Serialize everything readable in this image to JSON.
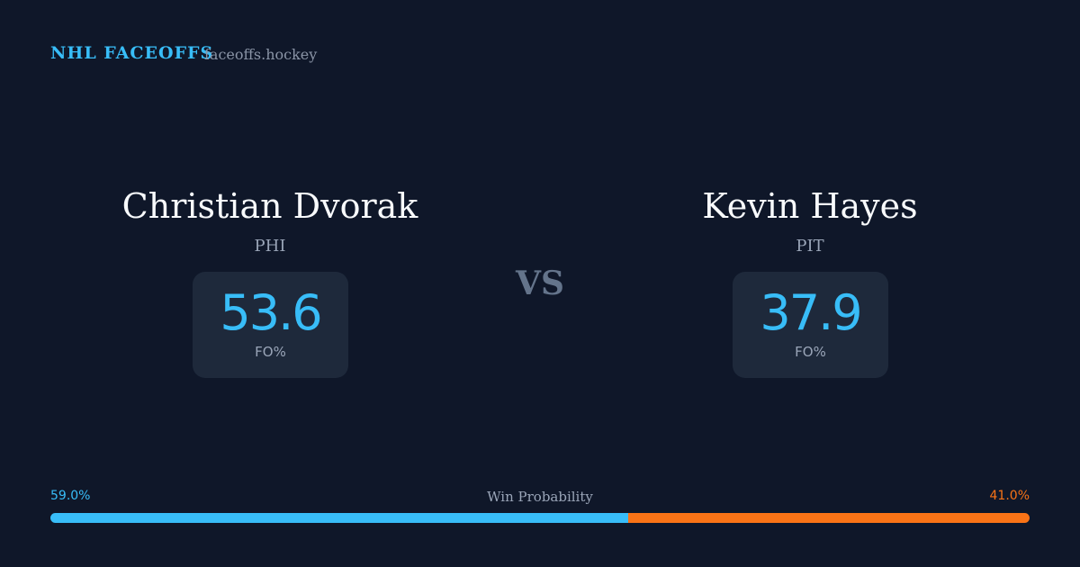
{
  "header": {
    "title": "NHL FACEOFFS",
    "site": "faceoffs.hockey"
  },
  "players": [
    {
      "name": "Christian Dvorak",
      "team": "PHI",
      "fo_pct": 53.6,
      "fo_label": "FO%"
    },
    {
      "name": "Kevin Hayes",
      "team": "PIT",
      "fo_pct": 37.9,
      "fo_label": "FO%"
    }
  ],
  "vs": "VS",
  "win_probability": {
    "label": "Win Probability",
    "values": [
      59.0,
      41.0
    ],
    "value_labels": [
      "59.0%",
      "41.0%"
    ],
    "colors": [
      "#38bdf8",
      "#f97316"
    ]
  }
}
